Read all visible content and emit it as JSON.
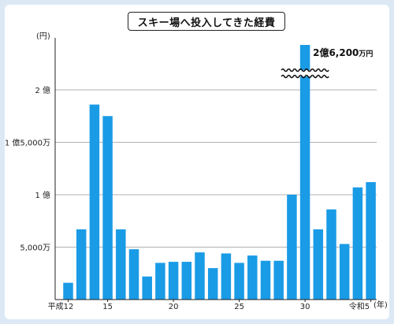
{
  "chart_data": {
    "type": "bar",
    "title": "スキー場へ投入してきた経費",
    "ylabel": "(円)",
    "xlabel": "(年)",
    "categories": [
      "平成12",
      "13",
      "14",
      "15",
      "16",
      "17",
      "18",
      "19",
      "20",
      "21",
      "22",
      "23",
      "24",
      "25",
      "26",
      "27",
      "28",
      "29",
      "30",
      "31",
      "令和2",
      "3",
      "4",
      "令和5"
    ],
    "x_tick_labels": [
      "平成12",
      "15",
      "20",
      "25",
      "30",
      "令和5"
    ],
    "x_tick_indices": [
      0,
      3,
      8,
      13,
      18,
      23
    ],
    "unit_label_year": "(年)",
    "values": [
      1600,
      6700,
      18600,
      17500,
      6700,
      4800,
      2200,
      3500,
      3600,
      3600,
      4500,
      3000,
      4400,
      3500,
      4200,
      3700,
      3700,
      10000,
      26200,
      6700,
      8600,
      5300,
      10700,
      11200
    ],
    "y_ticks": [
      {
        "value": 5000,
        "label": "5,000万"
      },
      {
        "value": 10000,
        "label": "1 億"
      },
      {
        "value": 15000,
        "label": "1 億5,000万"
      },
      {
        "value": 20000,
        "label": "2 億"
      }
    ],
    "ylim": [
      0,
      24000
    ],
    "y_unit": "万円",
    "broken_axis_bar_index": 18,
    "annotation": {
      "bar_index": 18,
      "text_main": "2億6,200",
      "text_unit": "万円"
    },
    "color": "#1a9be6",
    "grid": true
  }
}
